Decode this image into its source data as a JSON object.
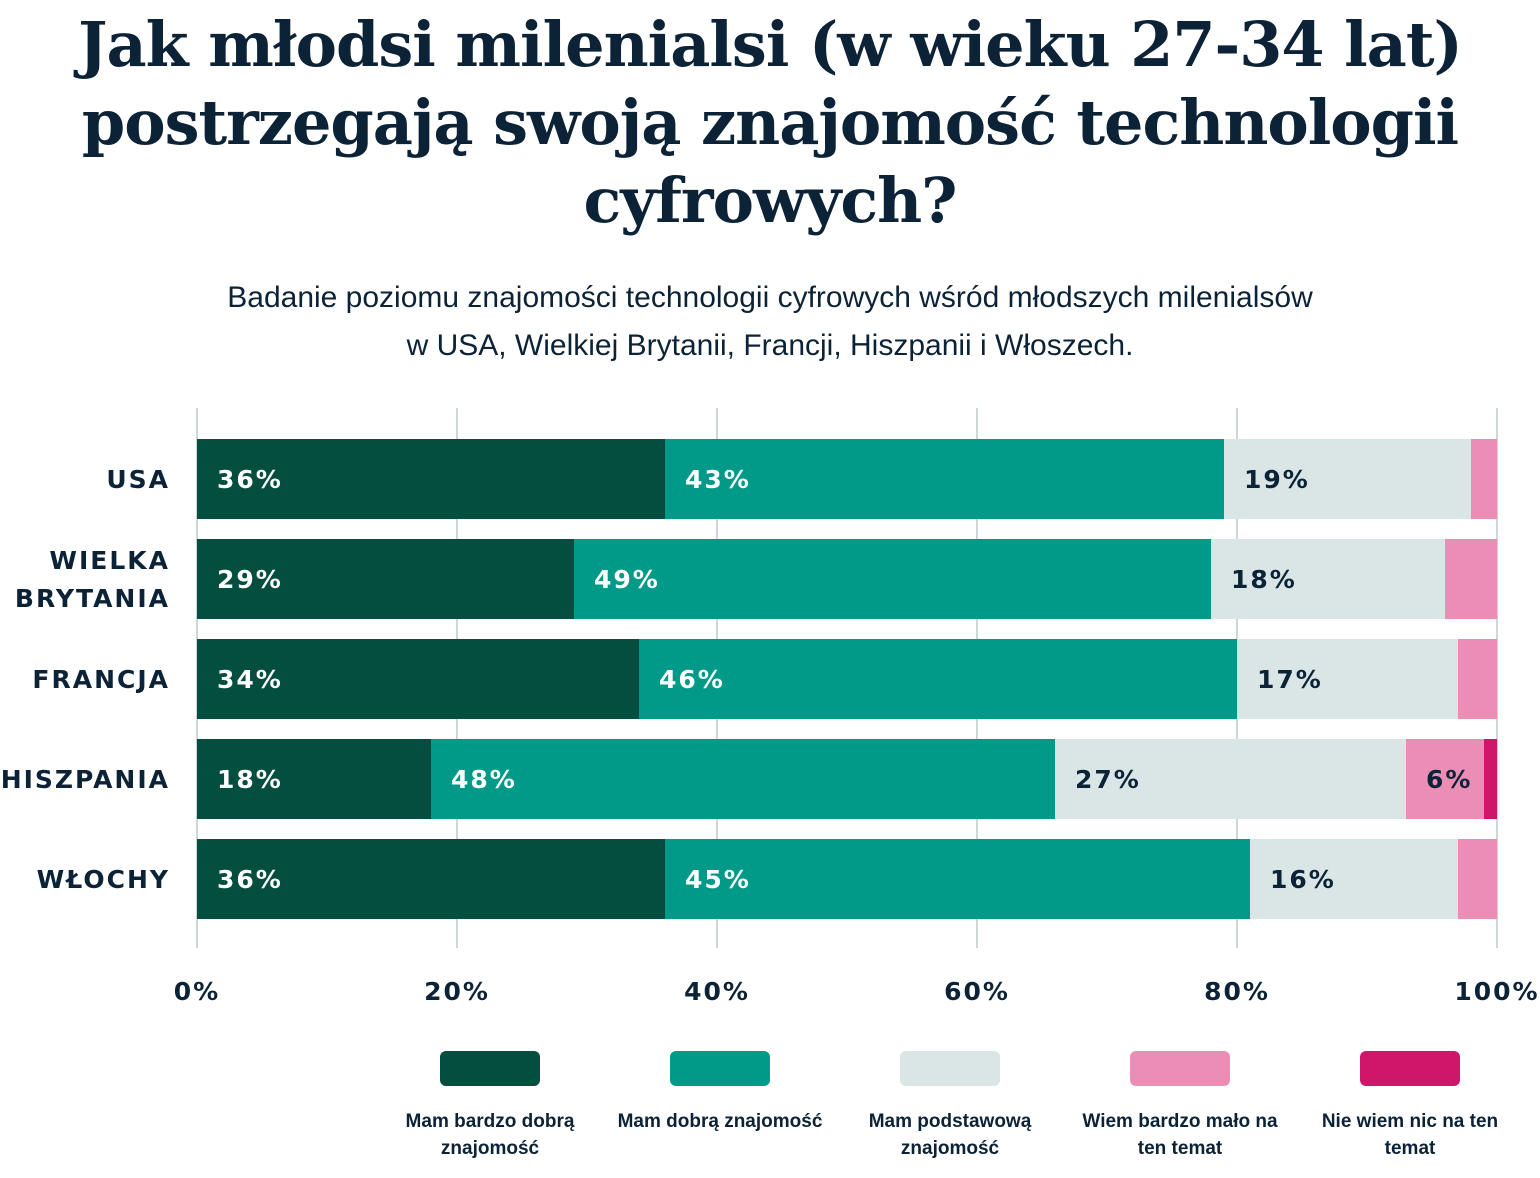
{
  "title": "Jak młodsi milenialsi (w wieku 27-34 lat) postrzegają swoją znajomość technologii cyfrowych?",
  "subtitle": "Badanie poziomu znajomości technologii cyfrowych wśród młodszych milenialsów w USA, Wielkiej Brytanii, Francji, Hiszpanii i Włoszech.",
  "chart_data": {
    "type": "bar",
    "orientation": "horizontal-stacked",
    "categories": [
      "USA",
      "WIELKA BRYTANIA",
      "FRANCJA",
      "HISZPANIA",
      "WŁOCHY"
    ],
    "series": [
      {
        "name": "Mam bardzo dobrą znajomość",
        "color": "#034e3f",
        "values": [
          36,
          29,
          34,
          18,
          36
        ]
      },
      {
        "name": "Mam dobrą znajomość",
        "color": "#019a89",
        "values": [
          43,
          49,
          46,
          48,
          45
        ]
      },
      {
        "name": "Mam podstawową znajomość",
        "color": "#d9e6e5",
        "values": [
          19,
          18,
          17,
          27,
          16
        ]
      },
      {
        "name": "Wiem bardzo mało na ten temat",
        "color": "#ec8db6",
        "values": [
          2,
          4,
          3,
          6,
          3
        ]
      },
      {
        "name": "Nie wiem nic na ten temat",
        "color": "#cf166b",
        "values": [
          0,
          0,
          0,
          1,
          0
        ]
      }
    ],
    "xlim": [
      0,
      100
    ],
    "xticks": [
      "0%",
      "20%",
      "40%",
      "60%",
      "80%",
      "100%"
    ],
    "grid": true,
    "legend": "bottom"
  }
}
